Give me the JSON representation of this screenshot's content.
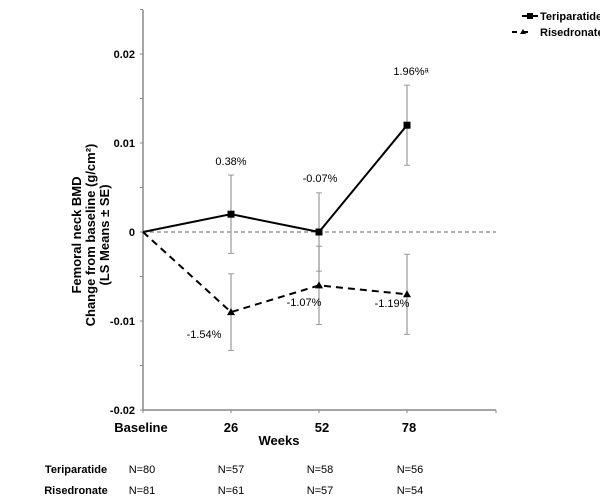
{
  "chart_data": {
    "type": "line",
    "title": "",
    "xlabel": "Weeks",
    "ylabel_lines": [
      "Femoral neck BMD",
      "Change from baseline (g/cm²)",
      "(LS Means ± SE)"
    ],
    "categories": [
      "Baseline",
      "26",
      "52",
      "78"
    ],
    "ylim": [
      -0.02,
      0.025
    ],
    "yticks": [
      -0.02,
      -0.01,
      0,
      0.01,
      0.02
    ],
    "ytick_labels": [
      "-0.02",
      "-0.01",
      "0",
      "0.01",
      "0.02"
    ],
    "grid": false,
    "reference_line": 0,
    "legend_position": "top-right",
    "series": [
      {
        "name": "Teriparatide",
        "marker": "square",
        "line_style": "solid",
        "values": [
          0,
          0.002,
          0.0,
          0.012
        ],
        "error": [
          null,
          0.0044,
          0.0044,
          0.0045
        ],
        "data_labels": [
          null,
          "0.38%",
          "-0.07%",
          "1.96%ᵃ"
        ]
      },
      {
        "name": "Risedronate",
        "marker": "triangle",
        "line_style": "dashed",
        "values": [
          0,
          -0.009,
          -0.006,
          -0.007
        ],
        "error": [
          null,
          0.0043,
          0.0044,
          0.0045
        ],
        "data_labels": [
          null,
          "-1.54%",
          "-1.07%",
          "-1.19%"
        ]
      }
    ],
    "n_table": {
      "rows": [
        {
          "label": "Teriparatide",
          "values": [
            "N=80",
            "N=57",
            "N=58",
            "N=56"
          ]
        },
        {
          "label": "Risedronate",
          "values": [
            "N=81",
            "N=61",
            "N=57",
            "N=54"
          ]
        }
      ]
    }
  },
  "colors": {
    "axis": "#888888",
    "series_line": "#000000",
    "error_bar": "#999999",
    "zero_line": "#666666"
  }
}
